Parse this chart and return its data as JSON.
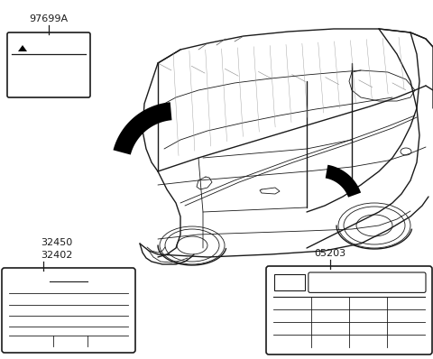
{
  "bg_color": "#ffffff",
  "line_color": "#1a1a1a",
  "label_97699A": "97699A",
  "label_32402": "32402",
  "label_32450": "32450",
  "label_05203": "05203",
  "figw": 4.8,
  "figh": 3.98,
  "dpi": 100
}
